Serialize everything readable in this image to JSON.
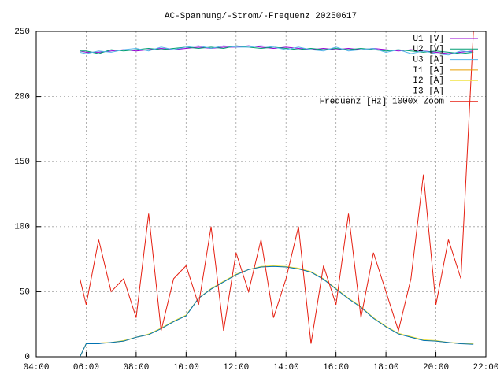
{
  "chart_data": {
    "type": "line",
    "title": "AC-Spannung/-Strom/-Frequenz 20250617",
    "x": [
      5.75,
      6,
      6.5,
      7,
      7.5,
      8,
      8.5,
      9,
      9.5,
      10,
      10.5,
      11,
      11.5,
      12,
      12.5,
      13,
      13.5,
      14,
      14.5,
      15,
      15.5,
      16,
      16.5,
      17,
      17.5,
      18,
      18.5,
      19,
      19.5,
      20,
      20.5,
      21,
      21.5
    ],
    "xlim": [
      4,
      22
    ],
    "xticks": [
      {
        "value": 4,
        "label": "04:00"
      },
      {
        "value": 6,
        "label": "06:00"
      },
      {
        "value": 8,
        "label": "08:00"
      },
      {
        "value": 10,
        "label": "10:00"
      },
      {
        "value": 12,
        "label": "12:00"
      },
      {
        "value": 14,
        "label": "14:00"
      },
      {
        "value": 16,
        "label": "16:00"
      },
      {
        "value": 18,
        "label": "18:00"
      },
      {
        "value": 20,
        "label": "20:00"
      },
      {
        "value": 22,
        "label": "22:00"
      }
    ],
    "ylim": [
      0,
      250
    ],
    "yticks": [
      0,
      50,
      100,
      150,
      200,
      250
    ],
    "grid": true,
    "legend": "top-right",
    "series": [
      {
        "name": "U1 [V]",
        "color": "#9400d3",
        "values": [
          235,
          234,
          234,
          235,
          236,
          235,
          236,
          237,
          236,
          237,
          238,
          237,
          238,
          238,
          239,
          238,
          237,
          238,
          237,
          236,
          237,
          236,
          237,
          236,
          237,
          236,
          235,
          236,
          235,
          234,
          233,
          234,
          235
        ]
      },
      {
        "name": "U2 [V]",
        "color": "#009e73",
        "values": [
          235,
          235,
          233,
          236,
          235,
          236,
          237,
          236,
          237,
          238,
          237,
          238,
          237,
          239,
          238,
          237,
          238,
          237,
          236,
          237,
          236,
          237,
          236,
          237,
          236,
          235,
          236,
          235,
          234,
          235,
          234,
          233,
          234
        ]
      },
      {
        "name": "U3 [A]",
        "color": "#56b4e9",
        "values": [
          234,
          233,
          235,
          234,
          236,
          237,
          235,
          238,
          236,
          238,
          239,
          237,
          239,
          238,
          238,
          239,
          238,
          236,
          238,
          236,
          235,
          238,
          235,
          236,
          237,
          234,
          236,
          233,
          235,
          233,
          232,
          235,
          234
        ]
      },
      {
        "name": "I1 [A]",
        "color": "#e69f00",
        "values": [
          0,
          10,
          10.5,
          11,
          12,
          15,
          17,
          22,
          27,
          32,
          45,
          52,
          58,
          63,
          67,
          69,
          70,
          69,
          68,
          65,
          60,
          52,
          45,
          38,
          30,
          23,
          18,
          15,
          13,
          12,
          11,
          10,
          10
        ]
      },
      {
        "name": "I2 [A]",
        "color": "#f0e442",
        "values": [
          0,
          10,
          10.5,
          11,
          12.5,
          15,
          17.5,
          22,
          27.5,
          32,
          45,
          52.5,
          58,
          63.5,
          67,
          69.5,
          70,
          69.5,
          68,
          65.5,
          60,
          52.5,
          45,
          38.5,
          30,
          23.5,
          18,
          15.5,
          13,
          12.5,
          11,
          10.5,
          10
        ]
      },
      {
        "name": "I3 [A]",
        "color": "#0072b2",
        "values": [
          0,
          10,
          10,
          11,
          12,
          15,
          17,
          21.5,
          27,
          31.5,
          45,
          52,
          57.5,
          63,
          67,
          69,
          69.5,
          69,
          67.5,
          65,
          59.5,
          52,
          44.5,
          38,
          29.5,
          23,
          17.5,
          15,
          12.5,
          12,
          11,
          10,
          9.5
        ]
      },
      {
        "name": "Frequenz [Hz] 1000x Zoom",
        "color": "#e51e10",
        "values": [
          60,
          40,
          90,
          50,
          60,
          30,
          110,
          20,
          60,
          70,
          40,
          100,
          20,
          80,
          50,
          90,
          30,
          60,
          100,
          10,
          70,
          40,
          110,
          30,
          80,
          50,
          20,
          60,
          140,
          40,
          90,
          60,
          250
        ]
      }
    ]
  }
}
